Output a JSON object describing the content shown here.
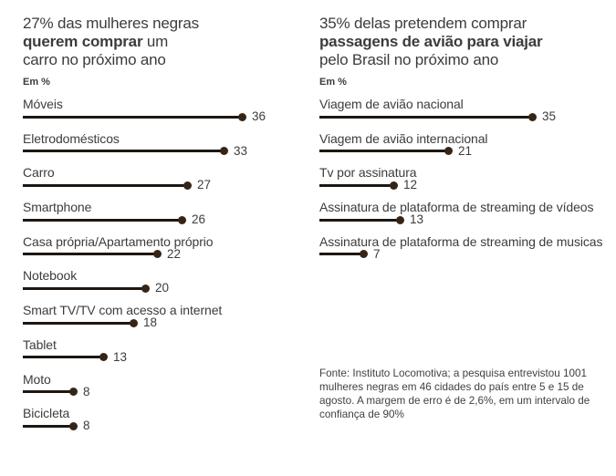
{
  "chart_data": [
    {
      "type": "bar",
      "variant": "lollipop",
      "title": "27% das mulheres negras querem comprar um carro no próximo ano",
      "title_lines": [
        [
          {
            "text": "27% das mulheres negras",
            "bold": false
          }
        ],
        [
          {
            "text": "querem comprar",
            "bold": true
          },
          {
            "text": " um",
            "bold": false
          }
        ],
        [
          {
            "text": "carro no próximo ano",
            "bold": false
          }
        ]
      ],
      "unit_label": "Em %",
      "categories": [
        "Móveis",
        "Eletrodomésticos",
        "Carro",
        "Smartphone",
        "Casa própria/Apartamento próprio",
        "Notebook",
        "Smart TV/TV com acesso a internet",
        "Tablet",
        "Moto",
        "Bicicleta"
      ],
      "values": [
        36,
        33,
        27,
        26,
        22,
        20,
        18,
        13,
        8,
        8
      ],
      "xlim": [
        0,
        36
      ],
      "grid": false,
      "legend": false
    },
    {
      "type": "bar",
      "variant": "lollipop",
      "title": "35% delas pretendem comprar passagens de avião para viajar pelo Brasil no próximo ano",
      "title_lines": [
        [
          {
            "text": "35% delas pretendem comprar",
            "bold": false
          }
        ],
        [
          {
            "text": "passagens de avião para viajar",
            "bold": true
          }
        ],
        [
          {
            "text": "pelo Brasil no próximo ano",
            "bold": false
          }
        ]
      ],
      "unit_label": "Em %",
      "categories": [
        "Viagem de avião nacional",
        "Viagem de avião internacional",
        "Tv por assinatura",
        "Assinatura de plataforma de streaming de vídeos",
        "Assinatura de plataforma de streaming de musicas"
      ],
      "values": [
        35,
        21,
        12,
        13,
        7
      ],
      "xlim": [
        0,
        36
      ],
      "grid": false,
      "legend": false
    }
  ],
  "footer": {
    "text": "Fonte: Instituto Locomotiva; a pesquisa entrevistou 1001 mulheres negras em 46 cidades do país entre 5 e 15 de agosto. A margem de erro é de 2,6%, em um intervalo de confiança de 90%",
    "lines": [
      "Fonte: Instituto Locomotiva; a pesquisa entrevistou 1001",
      "mulheres negras em 46 cidades do país entre 5 e 15 de",
      "agosto. A margem de erro é de 2,6%, em um intervalo de",
      "confiança de 90%"
    ]
  },
  "colors": {
    "bar_line": "#1d1712",
    "dot": "#362517",
    "text": "#3c3c3c",
    "background": "#ffffff"
  }
}
